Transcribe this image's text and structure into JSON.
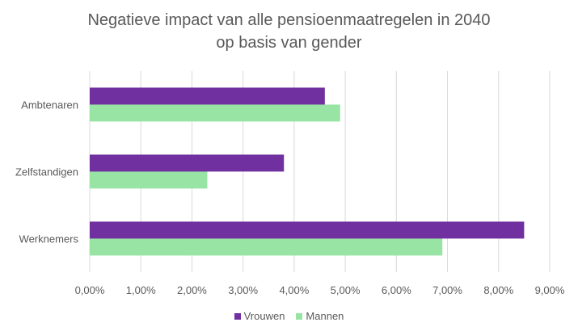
{
  "chart_data": {
    "type": "bar",
    "orientation": "horizontal",
    "title_line1": "Negatieve impact van alle pensioenmaatregelen in 2040",
    "title_line2": "op basis van gender",
    "categories": [
      "Ambtenaren",
      "Zelfstandigen",
      "Werknemers"
    ],
    "series": [
      {
        "name": "Vrouwen",
        "color": "#7030a0",
        "values": [
          4.6,
          3.8,
          8.5
        ]
      },
      {
        "name": "Mannen",
        "color": "#98e4a4",
        "values": [
          4.9,
          2.3,
          6.9
        ]
      }
    ],
    "xlim": [
      0,
      9
    ],
    "x_ticks": [
      "0,00%",
      "1,00%",
      "2,00%",
      "3,00%",
      "4,00%",
      "5,00%",
      "6,00%",
      "7,00%",
      "8,00%",
      "9,00%"
    ],
    "grid": "vertical",
    "legend_position": "bottom"
  }
}
